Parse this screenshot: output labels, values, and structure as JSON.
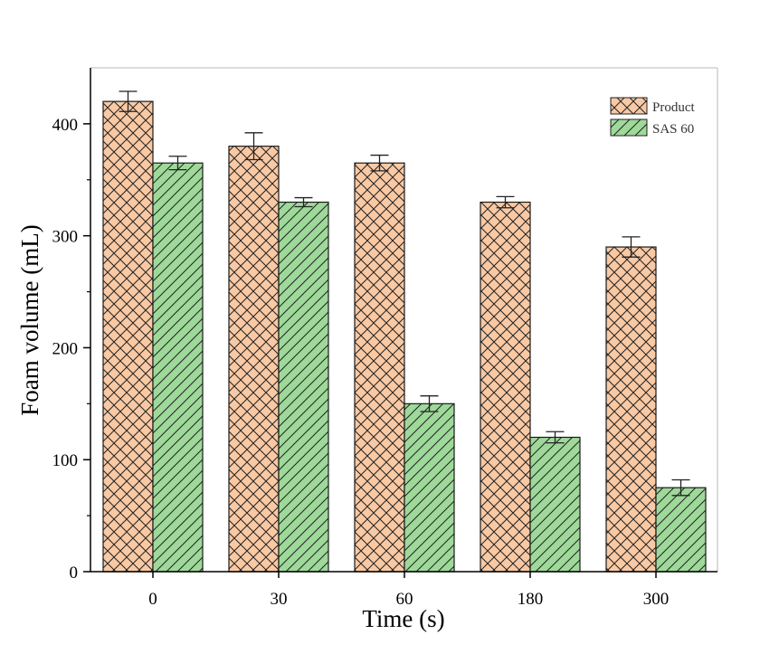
{
  "chart_data": {
    "type": "bar",
    "title": "",
    "xlabel": "Time (s)",
    "ylabel": "Foam volume (mL)",
    "categories": [
      "0",
      "30",
      "60",
      "180",
      "300"
    ],
    "ylim": [
      0,
      450
    ],
    "yticks": [
      0,
      100,
      200,
      300,
      400
    ],
    "grid": false,
    "legend_position": "top-right",
    "series": [
      {
        "name": "Product",
        "values": [
          420,
          380,
          365,
          330,
          290
        ],
        "errors": [
          9,
          12,
          7,
          5,
          9
        ],
        "color": "#f9c9a4",
        "pattern": "crosshatch"
      },
      {
        "name": "SAS 60",
        "values": [
          365,
          330,
          150,
          120,
          75
        ],
        "errors": [
          6,
          4,
          7,
          5,
          7
        ],
        "color": "#9ed99a",
        "pattern": "diagonal"
      }
    ]
  }
}
